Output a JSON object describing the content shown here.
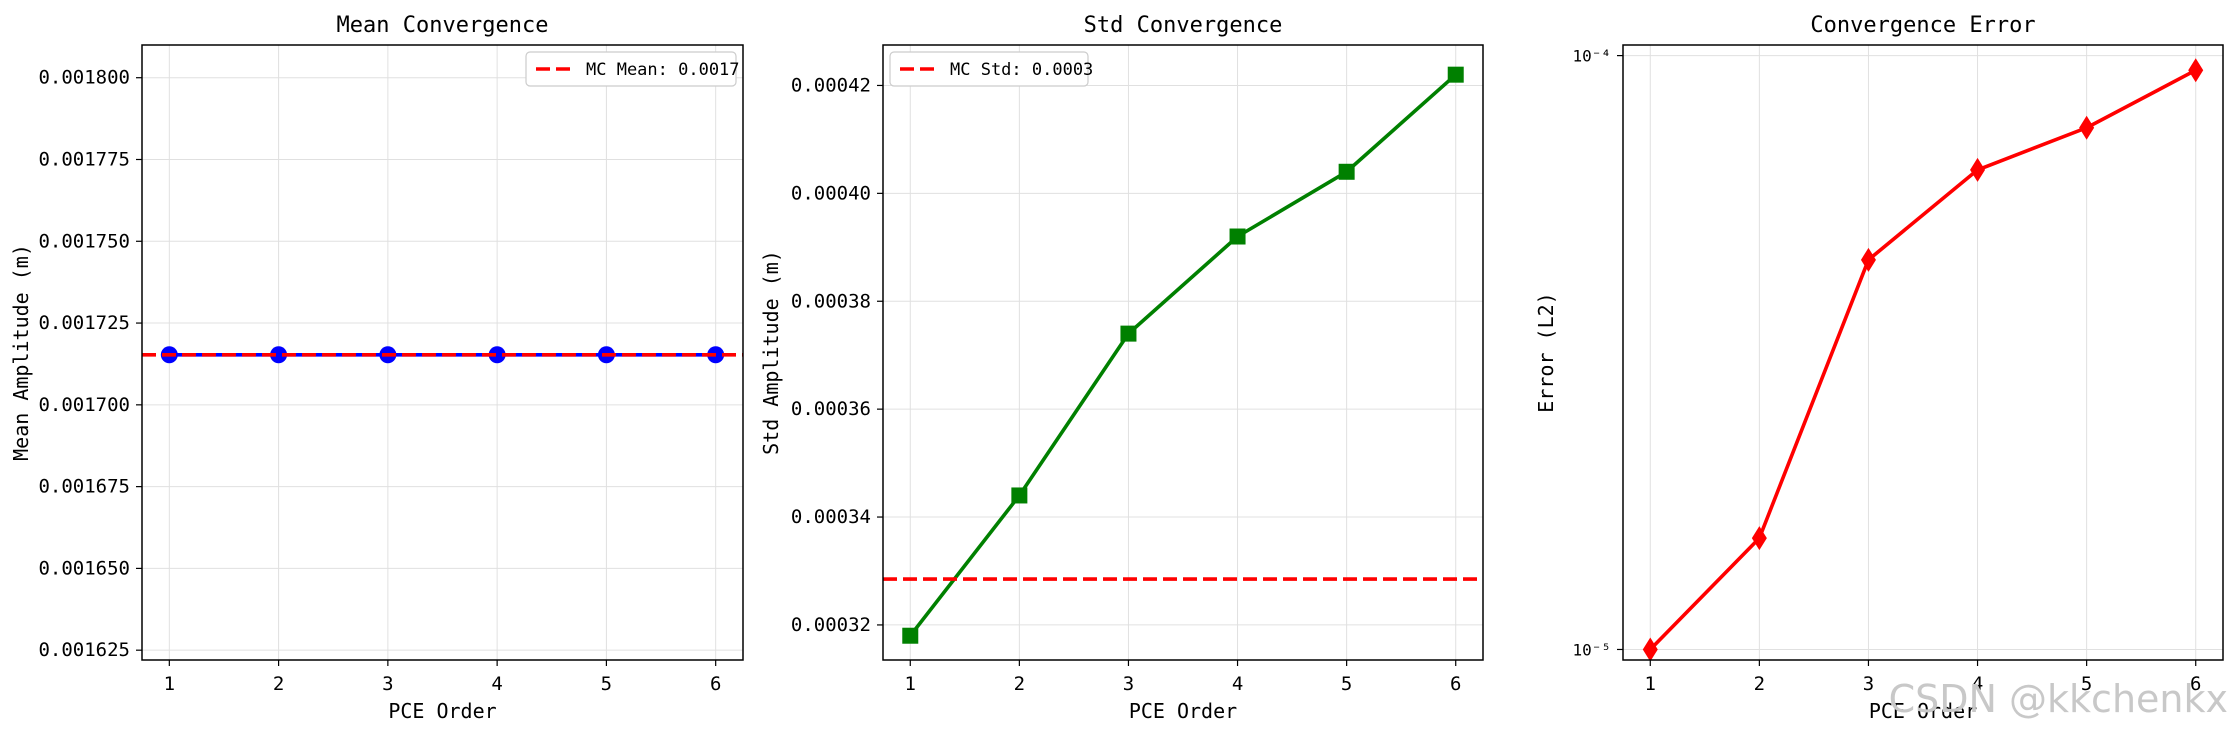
{
  "chart_data": [
    {
      "type": "line",
      "title": "Mean Convergence",
      "xlabel": "PCE Order",
      "ylabel": "Mean Amplitude (m)",
      "x": [
        1,
        2,
        3,
        4,
        5,
        6
      ],
      "xticks": [
        "1",
        "2",
        "3",
        "4",
        "5",
        "6"
      ],
      "xlim": [
        0.75,
        6.25
      ],
      "ylim": [
        0.001622,
        0.00181
      ],
      "yscale": "linear",
      "yticks": [
        0.001625,
        0.00165,
        0.001675,
        0.0017,
        0.001725,
        0.00175,
        0.001775,
        0.0018
      ],
      "ytick_labels": [
        "0.001625",
        "0.001650",
        "0.001675",
        "0.001700",
        "0.001725",
        "0.001750",
        "0.001775",
        "0.001800"
      ],
      "grid": true,
      "legend": "top-right",
      "series": [
        {
          "name": "",
          "values": [
            0.0017153,
            0.0017153,
            0.0017153,
            0.0017153,
            0.0017153,
            0.0017153
          ],
          "color": "#0000ff",
          "marker": "circle"
        }
      ],
      "hlines": [
        {
          "name": "MC Mean: 0.0017",
          "value": 0.0017153,
          "color": "#ff0000",
          "style": "dashed"
        }
      ]
    },
    {
      "type": "line",
      "title": "Std Convergence",
      "xlabel": "PCE Order",
      "ylabel": "Std Amplitude (m)",
      "x": [
        1,
        2,
        3,
        4,
        5,
        6
      ],
      "xticks": [
        "1",
        "2",
        "3",
        "4",
        "5",
        "6"
      ],
      "xlim": [
        0.75,
        6.25
      ],
      "ylim": [
        0.0003135,
        0.0004275
      ],
      "yscale": "linear",
      "yticks": [
        0.00032,
        0.00034,
        0.00036,
        0.00038,
        0.0004,
        0.00042
      ],
      "ytick_labels": [
        "0.00032",
        "0.00034",
        "0.00036",
        "0.00038",
        "0.00040",
        "0.00042"
      ],
      "grid": true,
      "legend": "top-left",
      "series": [
        {
          "name": "",
          "values": [
            0.000318,
            0.000344,
            0.000374,
            0.000392,
            0.000404,
            0.000422
          ],
          "color": "#008000",
          "marker": "square"
        }
      ],
      "hlines": [
        {
          "name": "MC Std: 0.0003",
          "value": 0.0003285,
          "color": "#ff0000",
          "style": "dashed"
        }
      ]
    },
    {
      "type": "line",
      "title": "Convergence Error",
      "xlabel": "PCE Order",
      "ylabel": "Error (L2)",
      "x": [
        1,
        2,
        3,
        4,
        5,
        6
      ],
      "xticks": [
        "1",
        "2",
        "3",
        "4",
        "5",
        "6"
      ],
      "xlim": [
        0.75,
        6.25
      ],
      "ylim": [
        9.6e-06,
        0.0001042
      ],
      "yscale": "log",
      "yticks": [
        1e-05,
        0.0001
      ],
      "ytick_labels": [
        "10⁻⁵",
        "10⁻⁴"
      ],
      "grid": true,
      "legend": "none",
      "series": [
        {
          "name": "",
          "values": [
            1e-05,
            1.54e-05,
            4.53e-05,
            6.42e-05,
            7.56e-05,
            9.45e-05
          ],
          "color": "#ff0000",
          "marker": "diamond"
        }
      ],
      "hlines": []
    }
  ],
  "watermark": "CSDN @kkchenkx"
}
